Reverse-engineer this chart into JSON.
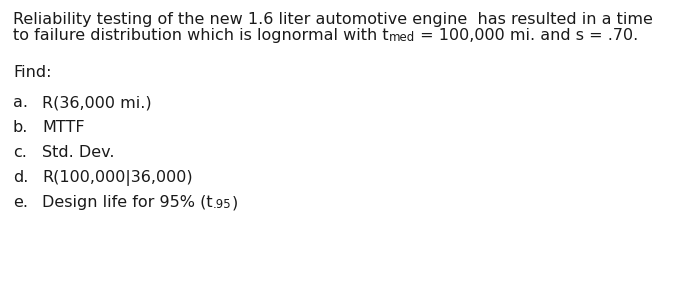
{
  "bg_color": "#ffffff",
  "text_color": "#1a1a1a",
  "line1": "Reliability testing of the new 1.6 liter automotive engine  has resulted in a time",
  "line2_part1": "to failure distribution which is lognormal with t",
  "line2_sub": "med",
  "line2_part2": " = 100,000 mi. and s = .70.",
  "find_label": "Find:",
  "items": [
    {
      "letter": "a.",
      "text": "R(36,000 mi.)",
      "has_sub": false
    },
    {
      "letter": "b.",
      "text": "MTTF",
      "has_sub": false
    },
    {
      "letter": "c.",
      "text": "Std. Dev.",
      "has_sub": false
    },
    {
      "letter": "d.",
      "text": "R(100,000|36,000)",
      "has_sub": false
    },
    {
      "letter": "e.",
      "text_before_sub": "Design life for 95% (t",
      "sub": ".95",
      "text_after_sub": ")",
      "has_sub": true
    }
  ],
  "font_size_body": 11.5,
  "font_size_sub": 8.5,
  "font_family": "DejaVu Sans"
}
